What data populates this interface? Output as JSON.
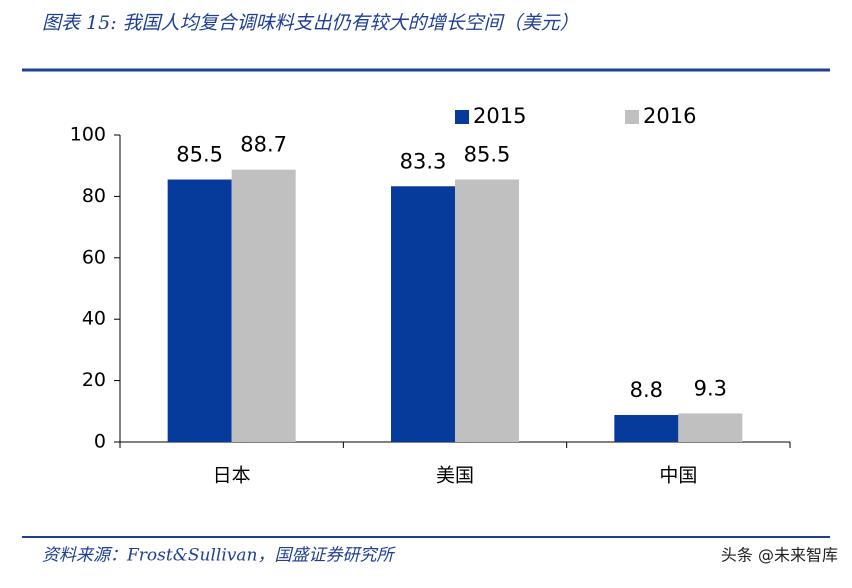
{
  "chart_data": {
    "type": "bar",
    "title": "图表 15:  我国人均复合调味料支出仍有较大的增长空间（美元）",
    "categories": [
      "日本",
      "美国",
      "中国"
    ],
    "series": [
      {
        "name": "2015",
        "color": "#063a9b",
        "values": [
          85.5,
          83.3,
          8.8
        ]
      },
      {
        "name": "2016",
        "color": "#c0c0c0",
        "values": [
          88.7,
          85.5,
          9.3
        ]
      }
    ],
    "ylim": [
      0,
      100
    ],
    "yticks": [
      0,
      20,
      40,
      60,
      80,
      100
    ],
    "legend": "top-right",
    "source": "资料来源：Frost&Sullivan，国盛证券研究所",
    "watermark": "头条 @未来智库"
  }
}
